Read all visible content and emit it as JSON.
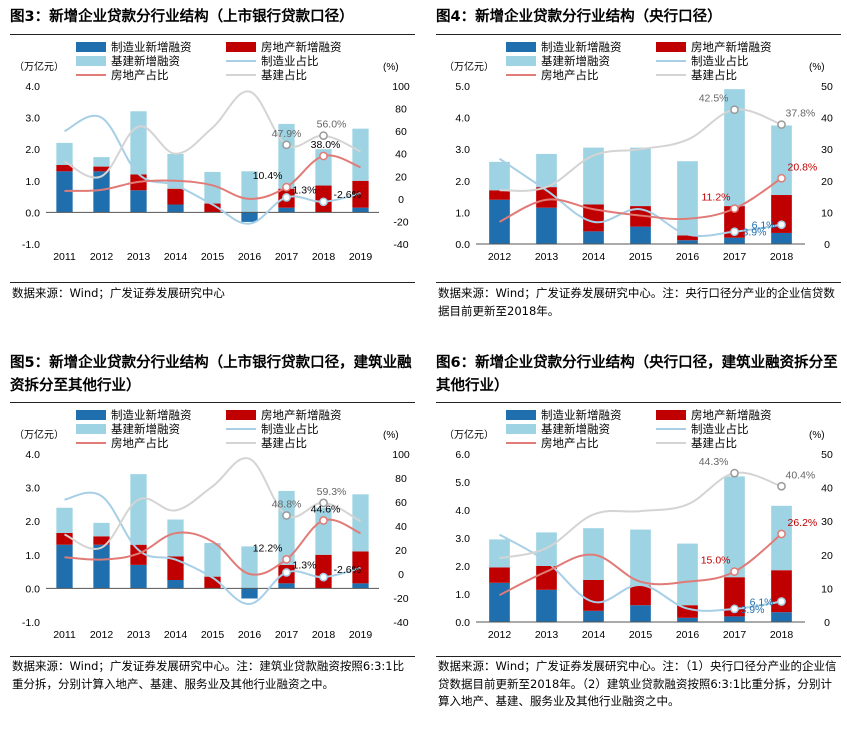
{
  "legend_labels": {
    "mfg_new": "制造业新增融资",
    "re_new": "房地产新增融资",
    "infra_new": "基建新增融资",
    "mfg_share": "制造业占比",
    "re_share": "房地产占比",
    "infra_share": "基建占比"
  },
  "colors": {
    "mfg_bar": "#1f6ead",
    "re_bar": "#c00000",
    "infra_bar": "#9dd3e2",
    "mfg_line": "#a7cfe6",
    "re_line": "#e07b77",
    "infra_line": "#d4d4d4",
    "label_red": "#c00000",
    "label_blue": "#1f6ead",
    "label_gray": "#666666"
  },
  "panels": [
    {
      "title": "图3：新增企业贷款分行业结构（上市银行贷款口径）",
      "source": "数据来源：Wind；广发证券发展研究中心",
      "chart_data": {
        "type": "bar",
        "stacked": true,
        "left_unit": "（万亿元）",
        "right_unit": "(%)",
        "categories": [
          "2011",
          "2012",
          "2013",
          "2014",
          "2015",
          "2016",
          "2017",
          "2018",
          "2019"
        ],
        "ylim": [
          -1.0,
          4.0
        ],
        "yticks": [
          -1.0,
          0.0,
          1.0,
          2.0,
          3.0,
          4.0
        ],
        "y2lim": [
          -40,
          100
        ],
        "y2ticks": [
          -40,
          -20,
          0,
          20,
          40,
          60,
          80,
          100
        ],
        "series": [
          {
            "name": "制造业新增融资",
            "kind": "bar",
            "values": [
              1.3,
              1.3,
              0.7,
              0.25,
              0.0,
              -0.3,
              0.15,
              0.0,
              0.15
            ]
          },
          {
            "name": "房地产新增融资",
            "kind": "bar",
            "values": [
              0.2,
              0.15,
              0.5,
              0.5,
              0.28,
              0.0,
              0.6,
              0.85,
              0.85
            ]
          },
          {
            "name": "基建新增融资",
            "kind": "bar",
            "values": [
              0.7,
              0.3,
              2.0,
              1.1,
              1.0,
              1.3,
              2.05,
              1.15,
              1.65
            ]
          },
          {
            "name": "制造业占比",
            "kind": "line",
            "values": [
              60,
              72,
              22,
              12,
              -5,
              -22,
              1.3,
              -2.6,
              5
            ]
          },
          {
            "name": "房地产占比",
            "kind": "line",
            "values": [
              7,
              8,
              15,
              16,
              12,
              0,
              10.4,
              38.0,
              28
            ]
          },
          {
            "name": "基建占比",
            "kind": "line",
            "values": [
              33,
              20,
              64,
              40,
              63,
              95,
              47.9,
              56.0,
              42
            ]
          }
        ],
        "annotations": [
          {
            "text": "10.4%",
            "series": 4,
            "index": 6,
            "color": "#000000"
          },
          {
            "text": "38.0%",
            "series": 4,
            "index": 7,
            "color": "#000000"
          },
          {
            "text": "47.9%",
            "series": 5,
            "index": 6,
            "color": "#666666"
          },
          {
            "text": "56.0%",
            "series": 5,
            "index": 7,
            "color": "#666666"
          },
          {
            "text": "1.3%",
            "series": 3,
            "index": 6,
            "color": "#000000"
          },
          {
            "text": "-2.6%",
            "series": 3,
            "index": 7,
            "color": "#000000"
          }
        ]
      }
    },
    {
      "title": "图4：新增企业贷款分行业结构（央行口径）",
      "source": "数据来源：Wind；广发证券发展研究中心。注：央行口径分产业的企业信贷数据目前更新至2018年。",
      "chart_data": {
        "type": "bar",
        "stacked": true,
        "left_unit": "（万亿元）",
        "right_unit": "(%)",
        "categories": [
          "2012",
          "2013",
          "2014",
          "2015",
          "2016",
          "2017",
          "2018"
        ],
        "ylim": [
          0,
          5.0
        ],
        "yticks": [
          0.0,
          1.0,
          2.0,
          3.0,
          4.0,
          5.0
        ],
        "y2lim": [
          0,
          50
        ],
        "y2ticks": [
          0,
          10,
          20,
          30,
          40,
          50
        ],
        "series": [
          {
            "name": "制造业新增融资",
            "kind": "bar",
            "values": [
              1.4,
              1.15,
              0.4,
              0.55,
              0.12,
              0.2,
              0.35
            ]
          },
          {
            "name": "房地产新增融资",
            "kind": "bar",
            "values": [
              0.3,
              0.65,
              0.85,
              0.65,
              0.15,
              1.0,
              1.2
            ]
          },
          {
            "name": "基建新增融资",
            "kind": "bar",
            "values": [
              0.9,
              1.05,
              1.8,
              1.85,
              2.35,
              3.7,
              2.2
            ]
          },
          {
            "name": "制造业占比",
            "kind": "line",
            "values": [
              27,
              17,
              7,
              11,
              3,
              3.9,
              6.1
            ]
          },
          {
            "name": "房地产占比",
            "kind": "line",
            "values": [
              7,
              14,
              11,
              9,
              8,
              11.2,
              20.8
            ]
          },
          {
            "name": "基建占比",
            "kind": "line",
            "values": [
              17,
              18,
              28,
              30,
              33,
              42.5,
              37.8
            ]
          }
        ],
        "annotations": [
          {
            "text": "42.5%",
            "series": 5,
            "index": 5,
            "color": "#666666"
          },
          {
            "text": "37.8%",
            "series": 5,
            "index": 6,
            "color": "#666666"
          },
          {
            "text": "11.2%",
            "series": 4,
            "index": 5,
            "color": "#c00000"
          },
          {
            "text": "20.8%",
            "series": 4,
            "index": 6,
            "color": "#c00000"
          },
          {
            "text": "3.9%",
            "series": 3,
            "index": 5,
            "color": "#1f6ead"
          },
          {
            "text": "6.1%",
            "series": 3,
            "index": 6,
            "color": "#1f6ead"
          }
        ]
      }
    },
    {
      "title": "图5：新增企业贷款分行业结构（上市银行贷款口径，建筑业融资拆分至其他行业）",
      "source": "数据来源：Wind；广发证券发展研究中心。注：建筑业贷款融资按照6:3:1比重分拆，分别计算入地产、基建、服务业及其他行业融资之中。",
      "chart_data": {
        "type": "bar",
        "stacked": true,
        "left_unit": "（万亿元）",
        "right_unit": "(%)",
        "categories": [
          "2011",
          "2012",
          "2013",
          "2014",
          "2015",
          "2016",
          "2017",
          "2018",
          "2019"
        ],
        "ylim": [
          -1.0,
          4.0
        ],
        "yticks": [
          -1.0,
          0.0,
          1.0,
          2.0,
          3.0,
          4.0
        ],
        "y2lim": [
          -40,
          100
        ],
        "y2ticks": [
          -40,
          -20,
          0,
          20,
          40,
          60,
          80,
          100
        ],
        "series": [
          {
            "name": "制造业新增融资",
            "kind": "bar",
            "values": [
              1.3,
              1.3,
              0.7,
              0.25,
              0.0,
              -0.3,
              0.15,
              0.0,
              0.15
            ]
          },
          {
            "name": "房地产新增融资",
            "kind": "bar",
            "values": [
              0.35,
              0.25,
              0.6,
              0.7,
              0.35,
              0.0,
              0.55,
              1.0,
              0.95
            ]
          },
          {
            "name": "基建新增融资",
            "kind": "bar",
            "values": [
              0.75,
              0.4,
              2.1,
              1.1,
              1.0,
              1.25,
              2.2,
              1.4,
              1.7
            ]
          },
          {
            "name": "制造业占比",
            "kind": "line",
            "values": [
              62,
              65,
              20,
              12,
              -3,
              -25,
              1.3,
              -2.6,
              5
            ]
          },
          {
            "name": "房地产占比",
            "kind": "line",
            "values": [
              14,
              12,
              17,
              34,
              27,
              0,
              12.2,
              44.6,
              34
            ]
          },
          {
            "name": "基建占比",
            "kind": "line",
            "values": [
              33,
              22,
              62,
              53,
              73,
              96,
              48.8,
              59.3,
              44
            ]
          }
        ],
        "annotations": [
          {
            "text": "12.2%",
            "series": 4,
            "index": 6,
            "color": "#000000"
          },
          {
            "text": "44.6%",
            "series": 4,
            "index": 7,
            "color": "#000000"
          },
          {
            "text": "48.8%",
            "series": 5,
            "index": 6,
            "color": "#666666"
          },
          {
            "text": "59.3%",
            "series": 5,
            "index": 7,
            "color": "#666666"
          },
          {
            "text": "1.3%",
            "series": 3,
            "index": 6,
            "color": "#000000"
          },
          {
            "text": "-2.6%",
            "series": 3,
            "index": 7,
            "color": "#000000"
          }
        ]
      }
    },
    {
      "title": "图6：新增企业贷款分行业结构（央行口径，建筑业融资拆分至其他行业）",
      "source": "数据来源：Wind；广发证券发展研究中心。注：（1）央行口径分产业的企业信贷数据目前更新至2018年。（2）建筑业贷款融资按照6:3:1比重分拆，分别计算入地产、基建、服务业及其他行业融资之中。",
      "chart_data": {
        "type": "bar",
        "stacked": true,
        "left_unit": "（万亿元）",
        "right_unit": "(%)",
        "categories": [
          "2012",
          "2013",
          "2014",
          "2015",
          "2016",
          "2017",
          "2018"
        ],
        "ylim": [
          0,
          6.0
        ],
        "yticks": [
          0.0,
          1.0,
          2.0,
          3.0,
          4.0,
          5.0,
          6.0
        ],
        "y2lim": [
          0,
          50
        ],
        "y2ticks": [
          0,
          10,
          20,
          30,
          40,
          50
        ],
        "series": [
          {
            "name": "制造业新增融资",
            "kind": "bar",
            "values": [
              1.4,
              1.15,
              0.4,
              0.6,
              0.15,
              0.2,
              0.35
            ]
          },
          {
            "name": "房地产新增融资",
            "kind": "bar",
            "values": [
              0.55,
              0.85,
              1.1,
              0.7,
              0.45,
              1.4,
              1.5
            ]
          },
          {
            "name": "基建新增融资",
            "kind": "bar",
            "values": [
              1.0,
              1.2,
              1.85,
              2.0,
              2.2,
              3.6,
              2.3
            ]
          },
          {
            "name": "制造业占比",
            "kind": "line",
            "values": [
              26,
              18,
              6,
              11,
              4,
              3.9,
              6.1
            ]
          },
          {
            "name": "房地产占比",
            "kind": "line",
            "values": [
              8,
              15,
              20,
              12,
              12,
              15.0,
              26.2
            ]
          },
          {
            "name": "基建占比",
            "kind": "line",
            "values": [
              19,
              22,
              32,
              33,
              35,
              44.3,
              40.4
            ]
          }
        ],
        "annotations": [
          {
            "text": "44.3%",
            "series": 5,
            "index": 5,
            "color": "#666666"
          },
          {
            "text": "40.4%",
            "series": 5,
            "index": 6,
            "color": "#666666"
          },
          {
            "text": "15.0%",
            "series": 4,
            "index": 5,
            "color": "#c00000"
          },
          {
            "text": "26.2%",
            "series": 4,
            "index": 6,
            "color": "#c00000"
          },
          {
            "text": "3.9%",
            "series": 3,
            "index": 5,
            "color": "#1f6ead"
          },
          {
            "text": "6.1%",
            "series": 3,
            "index": 6,
            "color": "#1f6ead"
          }
        ]
      }
    }
  ]
}
